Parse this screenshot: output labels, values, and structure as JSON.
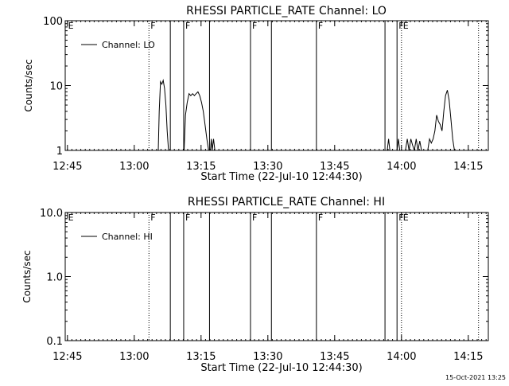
{
  "colors": {
    "background": "#ffffff",
    "foreground": "#000000"
  },
  "footer_timestamp": "15-Oct-2021 13:25",
  "chart_data": [
    {
      "type": "line",
      "title": "RHESSI PARTICLE_RATE Channel: LO",
      "xlabel": "Start Time (22-Jul-10 12:44:30)",
      "ylabel": "Counts/sec",
      "yscale": "log",
      "ylim": [
        1,
        100
      ],
      "xlim_minutes": [
        0,
        95
      ],
      "x_ticks": [
        {
          "minutes": 0.5,
          "label": "12:45"
        },
        {
          "minutes": 15.5,
          "label": "13:00"
        },
        {
          "minutes": 30.5,
          "label": "13:15"
        },
        {
          "minutes": 45.5,
          "label": "13:30"
        },
        {
          "minutes": 60.5,
          "label": "13:45"
        },
        {
          "minutes": 75.5,
          "label": "14:00"
        },
        {
          "minutes": 90.5,
          "label": "14:15"
        }
      ],
      "y_ticks": [
        {
          "value": 1,
          "label": "1"
        },
        {
          "value": 10,
          "label": "10"
        },
        {
          "value": 100,
          "label": "100"
        }
      ],
      "legend": {
        "position": "top-left",
        "entries": [
          "Channel: LO"
        ]
      },
      "markers": [
        {
          "minutes": 0.3,
          "label": "E",
          "style": "none"
        },
        {
          "minutes": 18.8,
          "label": "F",
          "style": "dotted"
        },
        {
          "minutes": 23.6,
          "label": "",
          "style": "solid"
        },
        {
          "minutes": 26.6,
          "label": "F",
          "style": "solid"
        },
        {
          "minutes": 32.4,
          "label": "",
          "style": "solid"
        },
        {
          "minutes": 41.6,
          "label": "F",
          "style": "solid"
        },
        {
          "minutes": 46.3,
          "label": "",
          "style": "solid"
        },
        {
          "minutes": 56.4,
          "label": "F",
          "style": "solid"
        },
        {
          "minutes": 71.8,
          "label": "",
          "style": "solid"
        },
        {
          "minutes": 74.5,
          "label": "F",
          "style": "solid"
        },
        {
          "minutes": 75.5,
          "label": "E",
          "style": "dotted"
        },
        {
          "minutes": 92.8,
          "label": "",
          "style": "dotted"
        }
      ],
      "series": [
        {
          "name": "Channel: LO",
          "segments": [
            [
              [
                20.9,
                1
              ],
              [
                21.1,
                4
              ],
              [
                21.4,
                11.5
              ],
              [
                21.7,
                10.5
              ],
              [
                22.0,
                12
              ],
              [
                22.3,
                9
              ],
              [
                22.6,
                5
              ],
              [
                22.9,
                2
              ],
              [
                23.2,
                1
              ]
            ],
            [
              [
                26.7,
                1
              ],
              [
                27.0,
                3.5
              ],
              [
                27.4,
                5.5
              ],
              [
                27.8,
                7.5
              ],
              [
                28.2,
                7
              ],
              [
                28.6,
                7.5
              ],
              [
                29.0,
                7
              ],
              [
                29.4,
                7.5
              ],
              [
                29.8,
                8
              ],
              [
                30.2,
                7
              ],
              [
                30.6,
                5.5
              ],
              [
                31.0,
                4
              ],
              [
                31.4,
                2.5
              ],
              [
                31.8,
                1.5
              ],
              [
                32.2,
                1
              ]
            ],
            [
              [
                32.6,
                1
              ],
              [
                32.8,
                1.5
              ],
              [
                33.0,
                1
              ],
              [
                33.3,
                1.5
              ],
              [
                33.6,
                1
              ]
            ],
            [
              [
                72.3,
                1
              ],
              [
                72.6,
                1.5
              ],
              [
                72.9,
                1
              ]
            ],
            [
              [
                74.5,
                1
              ],
              [
                74.8,
                1.5
              ],
              [
                75.1,
                1
              ]
            ],
            [
              [
                76.4,
                1
              ],
              [
                76.8,
                1.5
              ],
              [
                77.2,
                1
              ],
              [
                77.6,
                1.5
              ],
              [
                78.0,
                1.2
              ],
              [
                78.4,
                1
              ],
              [
                78.8,
                1.5
              ],
              [
                79.2,
                1
              ],
              [
                79.6,
                1.4
              ],
              [
                80.0,
                1
              ]
            ],
            [
              [
                81.4,
                1
              ],
              [
                81.8,
                1.5
              ],
              [
                82.2,
                1.3
              ],
              [
                82.6,
                1.5
              ],
              [
                83.0,
                2
              ],
              [
                83.4,
                3.5
              ],
              [
                83.8,
                2.8
              ],
              [
                84.2,
                2.5
              ],
              [
                84.6,
                2
              ],
              [
                85.0,
                4
              ],
              [
                85.4,
                7
              ],
              [
                85.8,
                8.5
              ],
              [
                86.2,
                6
              ],
              [
                86.6,
                3
              ],
              [
                87.0,
                1.5
              ],
              [
                87.4,
                1
              ]
            ]
          ]
        }
      ]
    },
    {
      "type": "line",
      "title": "RHESSI PARTICLE_RATE Channel: HI",
      "xlabel": "Start Time (22-Jul-10 12:44:30)",
      "ylabel": "Counts/sec",
      "yscale": "log",
      "ylim": [
        0.1,
        10
      ],
      "xlim_minutes": [
        0,
        95
      ],
      "x_ticks": [
        {
          "minutes": 0.5,
          "label": "12:45"
        },
        {
          "minutes": 15.5,
          "label": "13:00"
        },
        {
          "minutes": 30.5,
          "label": "13:15"
        },
        {
          "minutes": 45.5,
          "label": "13:30"
        },
        {
          "minutes": 60.5,
          "label": "13:45"
        },
        {
          "minutes": 75.5,
          "label": "14:00"
        },
        {
          "minutes": 90.5,
          "label": "14:15"
        }
      ],
      "y_ticks": [
        {
          "value": 0.1,
          "label": "0.1"
        },
        {
          "value": 1,
          "label": "1.0"
        },
        {
          "value": 10,
          "label": "10.0"
        }
      ],
      "legend": {
        "position": "top-left",
        "entries": [
          "Channel: HI"
        ]
      },
      "markers": [
        {
          "minutes": 0.3,
          "label": "E",
          "style": "none"
        },
        {
          "minutes": 18.8,
          "label": "F",
          "style": "dotted"
        },
        {
          "minutes": 23.6,
          "label": "",
          "style": "solid"
        },
        {
          "minutes": 26.6,
          "label": "F",
          "style": "solid"
        },
        {
          "minutes": 32.4,
          "label": "",
          "style": "solid"
        },
        {
          "minutes": 41.6,
          "label": "F",
          "style": "solid"
        },
        {
          "minutes": 46.3,
          "label": "",
          "style": "solid"
        },
        {
          "minutes": 56.4,
          "label": "F",
          "style": "solid"
        },
        {
          "minutes": 71.8,
          "label": "",
          "style": "solid"
        },
        {
          "minutes": 74.5,
          "label": "F",
          "style": "solid"
        },
        {
          "minutes": 75.5,
          "label": "E",
          "style": "dotted"
        },
        {
          "minutes": 92.8,
          "label": "",
          "style": "dotted"
        }
      ],
      "series": [
        {
          "name": "Channel: HI",
          "segments": []
        }
      ]
    }
  ]
}
